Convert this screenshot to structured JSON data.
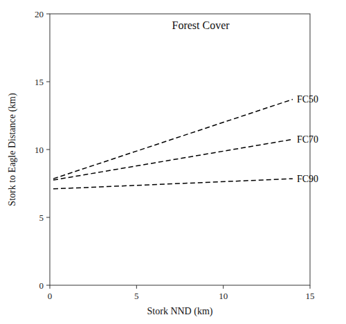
{
  "chart_data": {
    "type": "line",
    "title": "Forest Cover",
    "xlabel": "Stork NND (km)",
    "ylabel": "Stork to Eagle Distance (km)",
    "x": [
      0.2,
      14.0
    ],
    "series": [
      {
        "name": "FC50",
        "color": "#000000",
        "line_style": "dashed",
        "values": [
          7.85,
          13.7
        ]
      },
      {
        "name": "FC70",
        "color": "#000000",
        "line_style": "dashed",
        "values": [
          7.75,
          10.75
        ]
      },
      {
        "name": "FC90",
        "color": "#000000",
        "line_style": "dashed",
        "values": [
          7.1,
          7.85
        ]
      }
    ],
    "xlim": [
      0,
      15
    ],
    "ylim": [
      0,
      20
    ],
    "xticks": [
      0,
      5,
      10,
      15
    ],
    "yticks": [
      0,
      5,
      10,
      15,
      20
    ],
    "grid": false
  }
}
